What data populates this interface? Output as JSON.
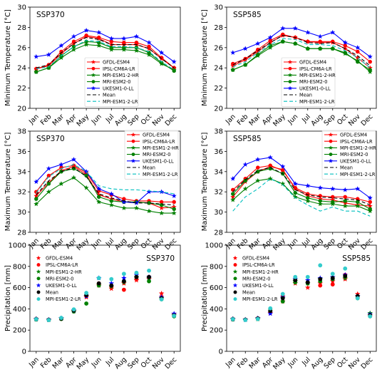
{
  "figure": {
    "months": [
      "Jan",
      "Feb",
      "Mar",
      "Apr",
      "May",
      "Jun",
      "Jul",
      "Aug",
      "Sep",
      "Oct",
      "Nov",
      "Dec"
    ]
  },
  "styles": {
    "GFDL-ESM4": {
      "color": "#ff0000",
      "marker": "star",
      "dash": ""
    },
    "IPSL-CM6A-LR": {
      "color": "#ff0000",
      "marker": "circle",
      "dash": ""
    },
    "MPI-ESM1-2-HR": {
      "color": "#008000",
      "marker": "star",
      "dash": ""
    },
    "MRI-ESM2-0": {
      "color": "#008000",
      "marker": "circle",
      "dash": ""
    },
    "UKESM1-0-LL": {
      "color": "#0000ff",
      "marker": "star",
      "dash": ""
    },
    "Mean": {
      "color": "#000000",
      "marker": "none",
      "dash": "5,3"
    },
    "MPI-ESM1-2-LR": {
      "color": "#00bfbf",
      "marker": "none",
      "dash": "5,3"
    }
  },
  "chart_data": [
    {
      "type": "line",
      "title": "SSP370",
      "ylabel": "Minimum Temperature [°C]",
      "ylim": [
        20,
        30
      ],
      "yticks": [
        20,
        22,
        24,
        26,
        28,
        30
      ],
      "legend": "center-right",
      "series": [
        {
          "name": "GFDL-ESM4",
          "values": [
            23.9,
            24.2,
            25.4,
            26.4,
            27.1,
            26.9,
            26.3,
            26.3,
            26.3,
            25.9,
            24.9,
            24.0
          ]
        },
        {
          "name": "IPSL-CM6A-LR",
          "values": [
            23.9,
            24.3,
            25.6,
            26.6,
            27.2,
            27.0,
            26.6,
            26.5,
            26.5,
            26.1,
            25.0,
            24.0
          ]
        },
        {
          "name": "MPI-ESM1-2-HR",
          "values": [
            23.6,
            24.0,
            25.0,
            25.8,
            26.3,
            26.2,
            25.8,
            25.8,
            25.7,
            25.3,
            24.4,
            23.8
          ]
        },
        {
          "name": "MRI-ESM2-0",
          "values": [
            23.6,
            24.0,
            25.2,
            26.1,
            26.6,
            26.5,
            26.0,
            26.0,
            26.0,
            25.5,
            24.5,
            23.7
          ]
        },
        {
          "name": "UKESM1-0-LL",
          "values": [
            25.1,
            25.3,
            26.2,
            27.1,
            27.7,
            27.5,
            26.9,
            26.9,
            27.1,
            26.5,
            25.5,
            24.6
          ]
        },
        {
          "name": "Mean",
          "values": [
            24.0,
            24.3,
            25.5,
            26.4,
            27.0,
            26.8,
            26.3,
            26.3,
            26.3,
            25.9,
            24.9,
            24.0
          ]
        },
        {
          "name": "MPI-ESM1-2-LR",
          "values": [
            23.9,
            24.1,
            25.2,
            26.1,
            26.7,
            26.6,
            26.1,
            26.1,
            26.0,
            25.6,
            24.6,
            23.8
          ]
        }
      ]
    },
    {
      "type": "line",
      "title": "SSP585",
      "ylabel": "Minimum Temperature [°C]",
      "ylim": [
        20,
        30
      ],
      "yticks": [
        20,
        22,
        24,
        26,
        28,
        30
      ],
      "legend": "center-right",
      "series": [
        {
          "name": "GFDL-ESM4",
          "values": [
            24.2,
            24.8,
            25.6,
            26.5,
            27.2,
            27.0,
            26.6,
            26.5,
            26.5,
            25.9,
            25.0,
            24.0
          ]
        },
        {
          "name": "IPSL-CM6A-LR",
          "values": [
            24.4,
            24.9,
            25.8,
            26.7,
            27.3,
            27.0,
            26.6,
            26.6,
            26.6,
            26.2,
            25.6,
            24.6
          ]
        },
        {
          "name": "MPI-ESM1-2-HR",
          "values": [
            23.8,
            24.3,
            25.2,
            26.0,
            26.6,
            26.4,
            25.9,
            25.9,
            25.9,
            25.4,
            24.7,
            23.6
          ]
        },
        {
          "name": "MRI-ESM2-0",
          "values": [
            23.8,
            24.3,
            25.3,
            26.2,
            26.6,
            26.4,
            25.9,
            25.9,
            25.9,
            25.5,
            24.6,
            23.8
          ]
        },
        {
          "name": "UKESM1-0-LL",
          "values": [
            25.5,
            25.9,
            26.4,
            27.0,
            27.9,
            27.9,
            27.5,
            27.1,
            27.5,
            26.5,
            26.0,
            25.1
          ]
        },
        {
          "name": "Mean",
          "values": [
            24.3,
            24.9,
            25.7,
            26.5,
            27.2,
            27.0,
            26.5,
            26.4,
            26.5,
            25.9,
            25.2,
            24.2
          ]
        },
        {
          "name": "MPI-ESM1-2-LR",
          "values": [
            24.1,
            24.6,
            25.5,
            26.3,
            26.9,
            26.8,
            26.3,
            26.3,
            26.2,
            25.7,
            25.0,
            24.0
          ]
        }
      ]
    },
    {
      "type": "line",
      "title": "SSP370",
      "ylabel": "Maximum Temperature [°C]",
      "ylim": [
        28,
        38
      ],
      "yticks": [
        28,
        30,
        32,
        34,
        36,
        38
      ],
      "legend": "top-right",
      "series": [
        {
          "name": "GFDL-ESM4",
          "values": [
            31.6,
            32.9,
            34.1,
            34.5,
            33.7,
            31.7,
            31.3,
            31.0,
            31.0,
            30.9,
            30.4,
            30.5
          ]
        },
        {
          "name": "IPSL-CM6A-LR",
          "values": [
            32.0,
            33.6,
            34.4,
            34.6,
            33.9,
            32.1,
            31.7,
            31.3,
            31.1,
            31.1,
            31.0,
            31.0
          ]
        },
        {
          "name": "MPI-ESM1-2-HR",
          "values": [
            30.8,
            32.0,
            32.8,
            33.4,
            32.4,
            31.0,
            30.7,
            30.4,
            30.4,
            30.1,
            29.9,
            29.9
          ]
        },
        {
          "name": "MRI-ESM2-0",
          "values": [
            31.3,
            32.8,
            34.0,
            34.3,
            33.6,
            31.5,
            31.1,
            31.0,
            31.0,
            30.9,
            30.7,
            30.3
          ]
        },
        {
          "name": "UKESM1-0-LL",
          "values": [
            33.0,
            34.3,
            34.7,
            35.2,
            34.0,
            32.3,
            31.8,
            31.0,
            30.9,
            32.0,
            32.0,
            31.6
          ]
        },
        {
          "name": "Mean",
          "values": [
            31.7,
            33.1,
            34.0,
            34.4,
            33.5,
            31.8,
            31.4,
            31.1,
            30.9,
            30.9,
            30.8,
            30.7
          ]
        },
        {
          "name": "MPI-ESM1-2-LR",
          "values": [
            31.9,
            33.5,
            34.3,
            34.7,
            34.0,
            32.6,
            32.3,
            32.2,
            32.2,
            32.1,
            32.0,
            31.8
          ]
        }
      ]
    },
    {
      "type": "line",
      "title": "SSP585",
      "ylabel": "Maximum Temperature [°C]",
      "ylim": [
        28,
        38
      ],
      "yticks": [
        28,
        30,
        32,
        34,
        36,
        38
      ],
      "legend": "top-right",
      "series": [
        {
          "name": "GFDL-ESM4",
          "values": [
            31.5,
            33.0,
            34.0,
            34.5,
            34.2,
            32.3,
            31.6,
            31.3,
            31.2,
            30.9,
            30.7,
            30.6
          ]
        },
        {
          "name": "IPSL-CM6A-LR",
          "values": [
            32.2,
            33.3,
            34.4,
            34.6,
            34.1,
            32.4,
            31.8,
            31.6,
            31.5,
            31.5,
            31.3,
            31.0
          ]
        },
        {
          "name": "MPI-ESM1-2-HR",
          "values": [
            31.2,
            32.3,
            33.1,
            33.3,
            32.8,
            31.5,
            31.1,
            30.8,
            30.8,
            30.6,
            30.6,
            30.1
          ]
        },
        {
          "name": "MRI-ESM2-0",
          "values": [
            31.8,
            33.1,
            34.0,
            34.3,
            33.8,
            31.9,
            31.4,
            31.1,
            31.0,
            31.1,
            31.0,
            30.3
          ]
        },
        {
          "name": "UKESM1-0-LL",
          "values": [
            33.3,
            34.7,
            35.2,
            35.4,
            34.5,
            32.8,
            32.6,
            32.4,
            32.3,
            32.2,
            32.3,
            31.4
          ]
        },
        {
          "name": "Mean",
          "values": [
            32.0,
            33.2,
            34.1,
            34.4,
            33.8,
            32.2,
            31.7,
            31.5,
            31.4,
            31.3,
            31.2,
            30.7
          ]
        },
        {
          "name": "MPI-ESM1-2-LR",
          "values": [
            30.1,
            31.5,
            32.3,
            33.3,
            32.7,
            31.4,
            30.7,
            30.1,
            30.5,
            30.1,
            30.1,
            29.6
          ]
        }
      ]
    },
    {
      "type": "scatter",
      "title": "SSP370",
      "ylabel": "Precipitation [mm]",
      "ylim": [
        0,
        1000
      ],
      "yticks": [
        0,
        200,
        400,
        600,
        800,
        1000
      ],
      "legend": "top-left",
      "series": [
        {
          "name": "GFDL-ESM4",
          "values": [
            305,
            298,
            310,
            380,
            510,
            620,
            590,
            640,
            670,
            680,
            545,
            350
          ]
        },
        {
          "name": "IPSL-CM6A-LR",
          "values": [
            305,
            298,
            305,
            380,
            520,
            640,
            610,
            580,
            680,
            700,
            510,
            340
          ]
        },
        {
          "name": "MPI-ESM1-2-HR",
          "values": [
            302,
            296,
            310,
            380,
            520,
            630,
            610,
            650,
            700,
            690,
            500,
            340
          ]
        },
        {
          "name": "MRI-ESM2-0",
          "values": [
            300,
            295,
            305,
            375,
            450,
            620,
            620,
            660,
            700,
            660,
            490,
            330
          ]
        },
        {
          "name": "UKESM1-0-LL",
          "values": [
            305,
            298,
            312,
            385,
            520,
            690,
            640,
            690,
            720,
            700,
            510,
            355
          ]
        },
        {
          "name": "Mean",
          "values": [
            305,
            298,
            310,
            385,
            530,
            640,
            620,
            660,
            700,
            700,
            500,
            340
          ]
        },
        {
          "name": "MPI-ESM1-2-LR",
          "values": [
            303,
            295,
            315,
            395,
            550,
            690,
            680,
            730,
            740,
            760,
            490,
            335
          ]
        }
      ]
    },
    {
      "type": "scatter",
      "title": "SSP585",
      "ylabel": "Precipitation [mm]",
      "ylim": [
        0,
        1000
      ],
      "yticks": [
        0,
        200,
        400,
        600,
        800,
        1000
      ],
      "legend": "top-left",
      "series": [
        {
          "name": "GFDL-ESM4",
          "values": [
            302,
            298,
            310,
            360,
            470,
            640,
            600,
            640,
            660,
            680,
            540,
            340
          ]
        },
        {
          "name": "IPSL-CM6A-LR",
          "values": [
            305,
            298,
            310,
            370,
            520,
            670,
            650,
            620,
            630,
            720,
            510,
            335
          ]
        },
        {
          "name": "MPI-ESM1-2-HR",
          "values": [
            305,
            298,
            305,
            375,
            500,
            660,
            640,
            680,
            700,
            690,
            520,
            360
          ]
        },
        {
          "name": "MRI-ESM2-0",
          "values": [
            300,
            298,
            305,
            400,
            470,
            650,
            640,
            660,
            680,
            710,
            500,
            330
          ]
        },
        {
          "name": "UKESM1-0-LL",
          "values": [
            305,
            298,
            312,
            355,
            510,
            680,
            670,
            690,
            700,
            720,
            520,
            350
          ]
        },
        {
          "name": "Mean",
          "values": [
            305,
            298,
            310,
            380,
            500,
            670,
            650,
            680,
            690,
            710,
            520,
            340
          ]
        },
        {
          "name": "MPI-ESM1-2-LR",
          "values": [
            303,
            295,
            305,
            405,
            540,
            700,
            700,
            810,
            730,
            780,
            500,
            330
          ]
        }
      ]
    }
  ]
}
